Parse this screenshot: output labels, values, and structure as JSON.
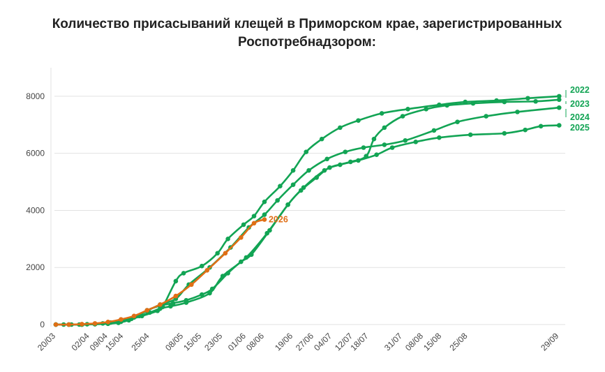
{
  "colors": {
    "past_years": "#12a454",
    "current_year": "#e06f16",
    "grid": "#e2e2e2",
    "axis_text": "#444444",
    "title": "#222222"
  },
  "chart_data": {
    "type": "line",
    "title_line1": "Количество присасываний клещей в Приморском крае, зарегистрированных",
    "title_line2": "Роспотребнадзором:",
    "xlabel": "",
    "ylabel": "",
    "x_axis_type": "date (DD/MM)",
    "xlim": [
      "20/03",
      "30/09"
    ],
    "ylim": [
      0,
      9000
    ],
    "grid": "horizontal",
    "y_ticks": [
      0,
      2000,
      4000,
      6000,
      8000
    ],
    "x_tick_labels": [
      "20/03",
      "02/04",
      "09/04",
      "15/04",
      "25/04",
      "08/05",
      "15/05",
      "23/05",
      "01/06",
      "08/06",
      "19/06",
      "27/06",
      "04/07",
      "12/07",
      "18/07",
      "31/07",
      "08/08",
      "15/08",
      "25/08",
      "29/09"
    ],
    "legend_placement": "right end of lines",
    "series": [
      {
        "name": "2022",
        "color_key": "past_years",
        "points": [
          [
            "20/03",
            0
          ],
          [
            "23/03",
            0
          ],
          [
            "26/03",
            0
          ],
          [
            "29/03",
            0
          ],
          [
            "01/04",
            10
          ],
          [
            "04/04",
            20
          ],
          [
            "07/04",
            40
          ],
          [
            "10/04",
            70
          ],
          [
            "13/04",
            110
          ],
          [
            "18/04",
            200
          ],
          [
            "22/04",
            300
          ],
          [
            "28/04",
            480
          ],
          [
            "30/04",
            620
          ],
          [
            "05/05",
            1520
          ],
          [
            "08/05",
            1800
          ],
          [
            "15/05",
            2050
          ],
          [
            "21/05",
            2500
          ],
          [
            "25/05",
            3000
          ],
          [
            "31/05",
            3500
          ],
          [
            "04/06",
            3800
          ],
          [
            "08/06",
            4300
          ],
          [
            "14/06",
            4850
          ],
          [
            "19/06",
            5400
          ],
          [
            "24/06",
            6050
          ],
          [
            "30/06",
            6500
          ],
          [
            "07/07",
            6900
          ],
          [
            "14/07",
            7150
          ],
          [
            "23/07",
            7400
          ],
          [
            "02/08",
            7550
          ],
          [
            "14/08",
            7700
          ],
          [
            "24/08",
            7800
          ],
          [
            "05/09",
            7850
          ],
          [
            "17/09",
            7930
          ],
          [
            "29/09",
            8000
          ]
        ]
      },
      {
        "name": "2023",
        "color_key": "past_years",
        "points": [
          [
            "20/03",
            0
          ],
          [
            "25/03",
            0
          ],
          [
            "30/03",
            0
          ],
          [
            "04/04",
            15
          ],
          [
            "09/04",
            30
          ],
          [
            "13/04",
            60
          ],
          [
            "17/04",
            150
          ],
          [
            "21/04",
            300
          ],
          [
            "25/04",
            420
          ],
          [
            "29/04",
            560
          ],
          [
            "03/05",
            640
          ],
          [
            "09/05",
            770
          ],
          [
            "18/05",
            1100
          ],
          [
            "23/05",
            1700
          ],
          [
            "01/06",
            2350
          ],
          [
            "09/06",
            3200
          ],
          [
            "17/06",
            4200
          ],
          [
            "22/06",
            4700
          ],
          [
            "28/06",
            5150
          ],
          [
            "03/07",
            5500
          ],
          [
            "11/07",
            5700
          ],
          [
            "17/07",
            5900
          ],
          [
            "20/07",
            6500
          ],
          [
            "24/07",
            6900
          ],
          [
            "31/07",
            7300
          ],
          [
            "09/08",
            7550
          ],
          [
            "17/08",
            7680
          ],
          [
            "27/08",
            7750
          ],
          [
            "08/09",
            7800
          ],
          [
            "20/09",
            7820
          ],
          [
            "29/09",
            7880
          ]
        ]
      },
      {
        "name": "2024",
        "color_key": "past_years",
        "points": [
          [
            "20/03",
            0
          ],
          [
            "25/03",
            0
          ],
          [
            "30/03",
            0
          ],
          [
            "04/04",
            20
          ],
          [
            "09/04",
            50
          ],
          [
            "14/04",
            120
          ],
          [
            "19/04",
            280
          ],
          [
            "24/04",
            480
          ],
          [
            "29/04",
            700
          ],
          [
            "05/05",
            900
          ],
          [
            "10/05",
            1400
          ],
          [
            "18/05",
            2000
          ],
          [
            "26/05",
            2700
          ],
          [
            "02/06",
            3400
          ],
          [
            "08/06",
            3850
          ],
          [
            "13/06",
            4350
          ],
          [
            "19/06",
            4900
          ],
          [
            "25/06",
            5400
          ],
          [
            "02/07",
            5800
          ],
          [
            "09/07",
            6050
          ],
          [
            "16/07",
            6200
          ],
          [
            "24/07",
            6300
          ],
          [
            "01/08",
            6450
          ],
          [
            "12/08",
            6800
          ],
          [
            "21/08",
            7100
          ],
          [
            "01/09",
            7300
          ],
          [
            "13/09",
            7450
          ],
          [
            "29/09",
            7600
          ]
        ]
      },
      {
        "name": "2025",
        "color_key": "past_years",
        "points": [
          [
            "20/03",
            0
          ],
          [
            "25/03",
            0
          ],
          [
            "30/03",
            0
          ],
          [
            "04/04",
            10
          ],
          [
            "09/04",
            30
          ],
          [
            "14/04",
            100
          ],
          [
            "19/04",
            250
          ],
          [
            "24/04",
            500
          ],
          [
            "29/04",
            660
          ],
          [
            "04/05",
            750
          ],
          [
            "09/05",
            850
          ],
          [
            "15/05",
            1050
          ],
          [
            "19/05",
            1250
          ],
          [
            "25/05",
            1800
          ],
          [
            "30/05",
            2200
          ],
          [
            "03/06",
            2450
          ],
          [
            "10/06",
            3300
          ],
          [
            "17/06",
            4200
          ],
          [
            "23/06",
            4800
          ],
          [
            "01/07",
            5400
          ],
          [
            "07/07",
            5600
          ],
          [
            "14/07",
            5750
          ],
          [
            "21/07",
            5950
          ],
          [
            "27/07",
            6200
          ],
          [
            "05/08",
            6400
          ],
          [
            "14/08",
            6550
          ],
          [
            "26/08",
            6650
          ],
          [
            "08/09",
            6700
          ],
          [
            "16/09",
            6820
          ],
          [
            "22/09",
            6950
          ],
          [
            "29/09",
            6980
          ]
        ]
      },
      {
        "name": "2026",
        "color_key": "current_year",
        "points": [
          [
            "20/03",
            0
          ],
          [
            "25/03",
            0
          ],
          [
            "30/03",
            15
          ],
          [
            "04/04",
            40
          ],
          [
            "09/04",
            90
          ],
          [
            "14/04",
            180
          ],
          [
            "19/04",
            300
          ],
          [
            "24/04",
            500
          ],
          [
            "29/04",
            700
          ],
          [
            "05/05",
            1000
          ],
          [
            "11/05",
            1400
          ],
          [
            "17/05",
            1900
          ],
          [
            "24/05",
            2500
          ],
          [
            "30/05",
            3050
          ],
          [
            "04/06",
            3550
          ],
          [
            "08/06",
            3680
          ]
        ]
      }
    ],
    "end_labels": [
      "2022",
      "2023",
      "2024",
      "2025",
      "2026"
    ]
  }
}
